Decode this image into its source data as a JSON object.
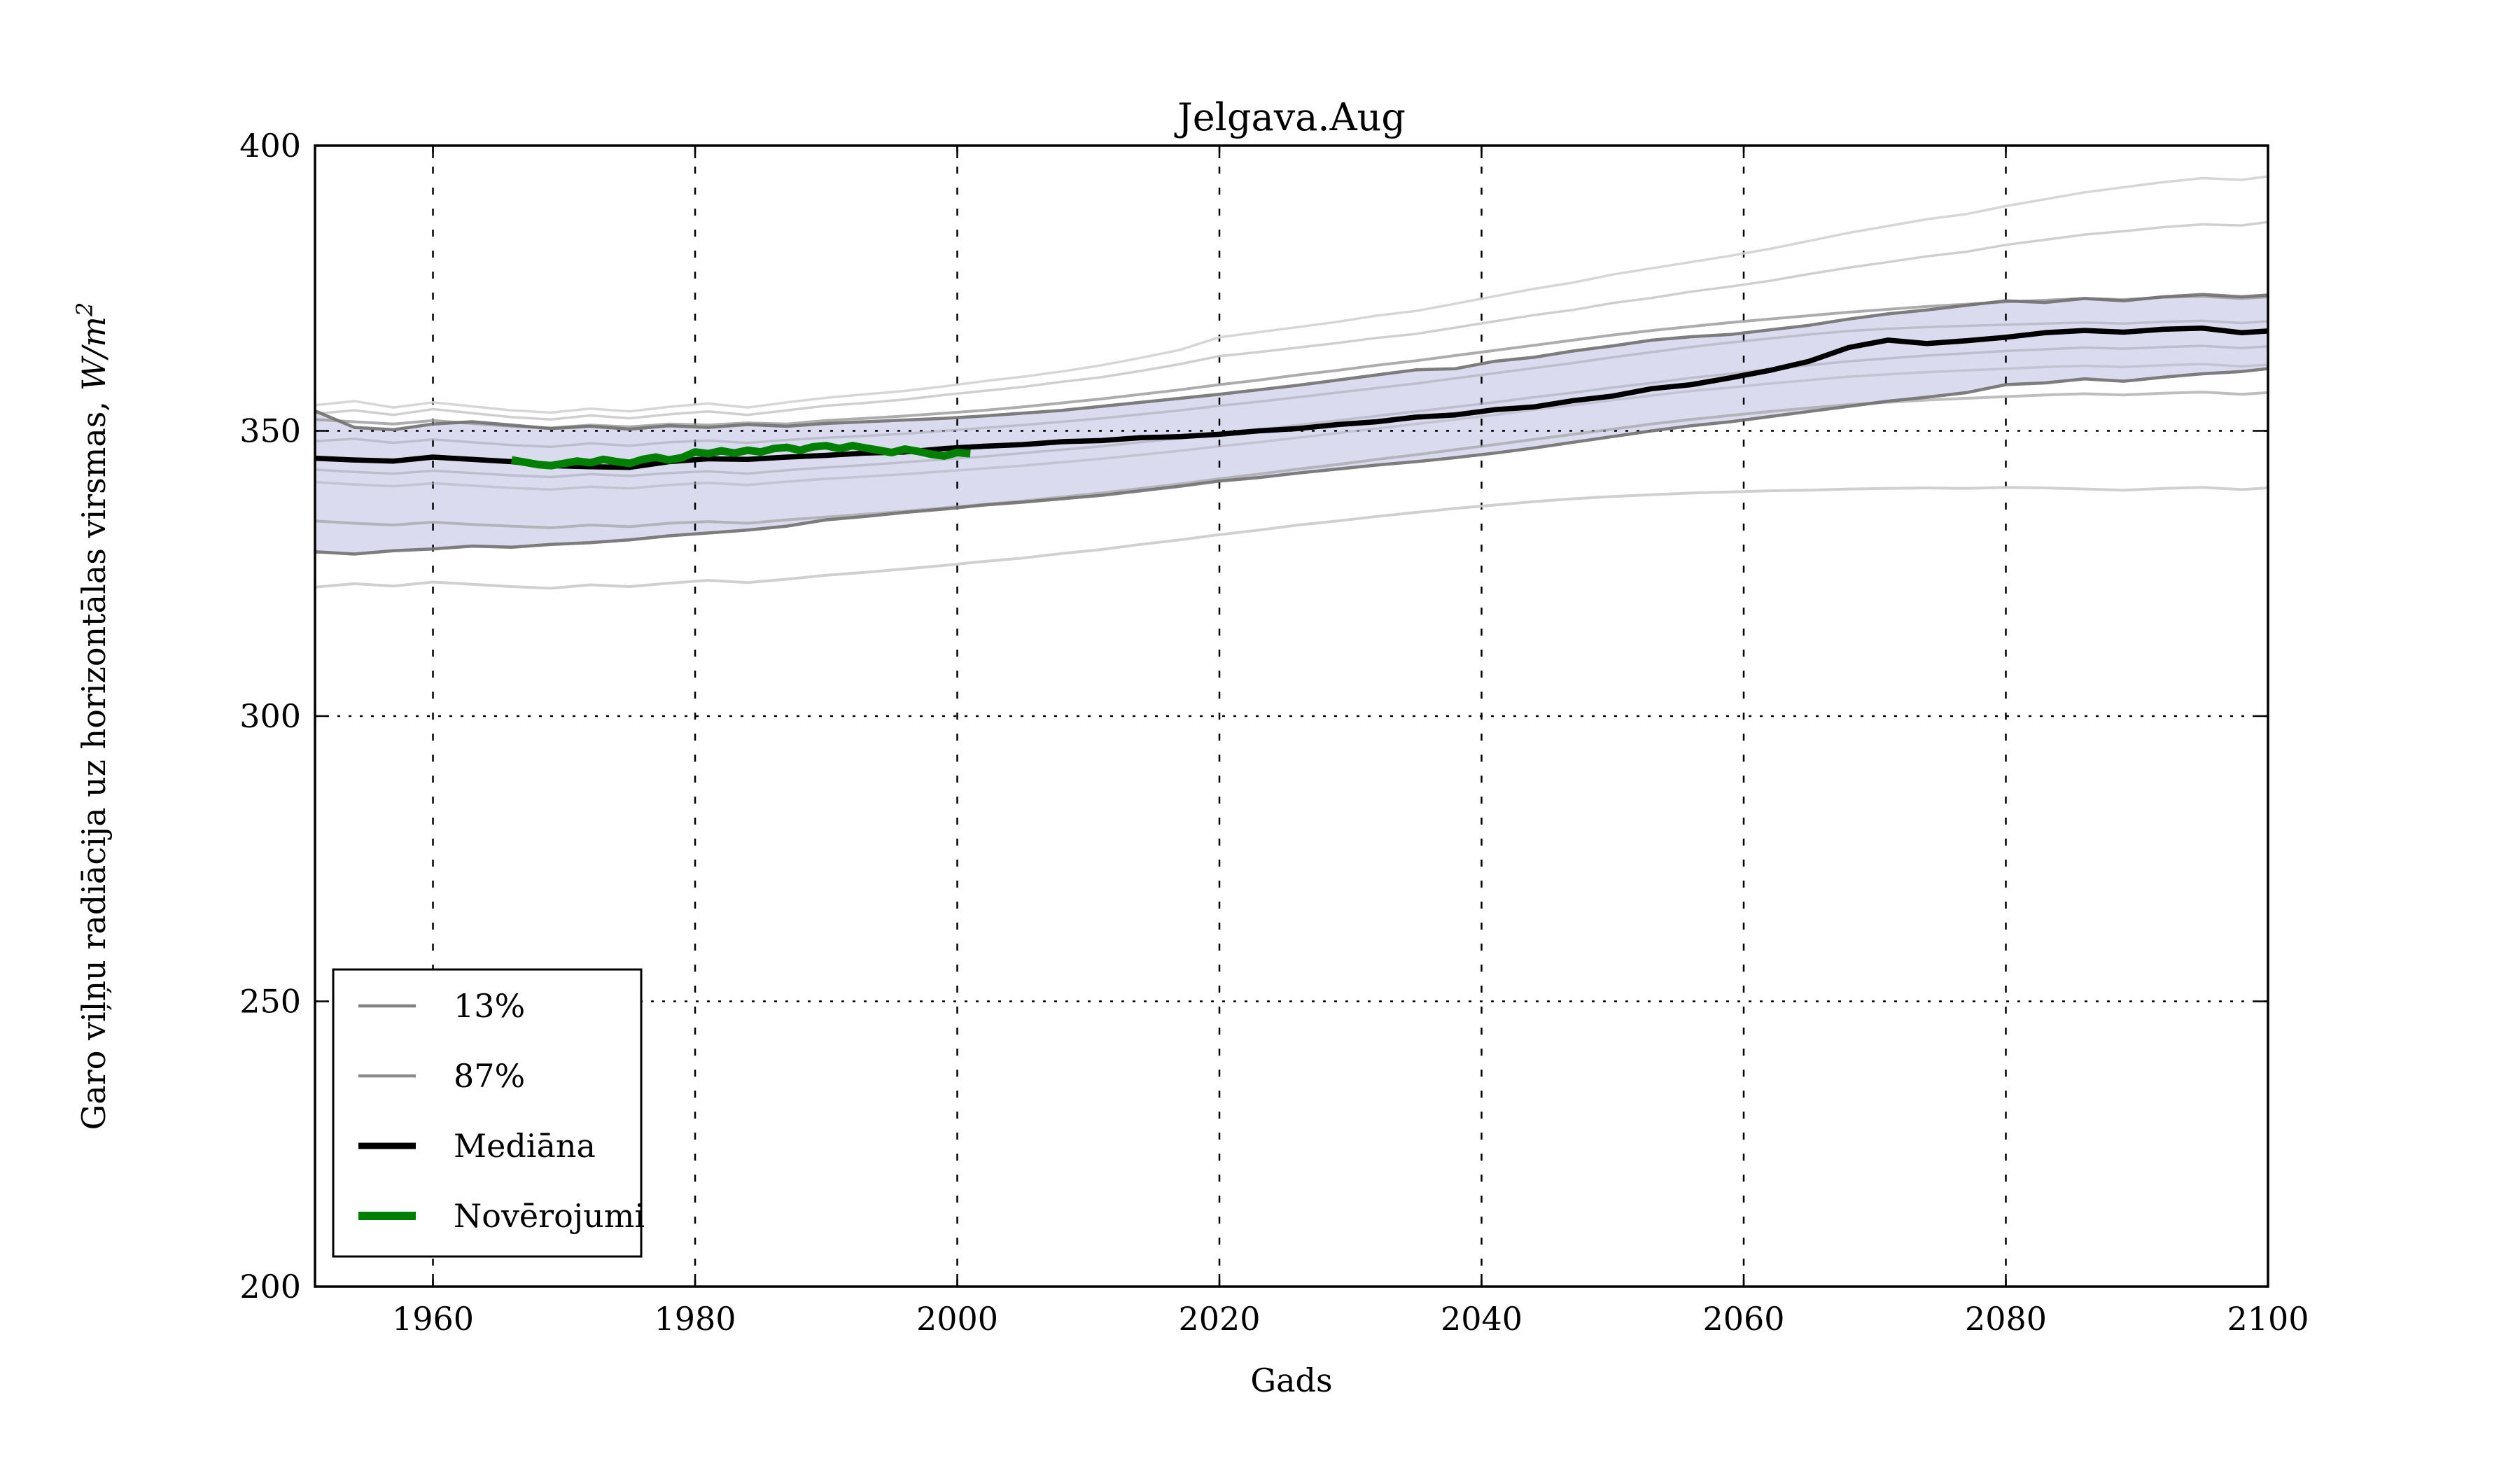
{
  "title": "Jelgava.Aug",
  "xlabel": "Gads",
  "ylabel_prefix": "Garo viļņu radiācija uz horizontālas virsmas, ",
  "ylabel_math": "W/m",
  "ylabel_sup": "2",
  "legend": {
    "items": [
      {
        "label": "13%",
        "color": "#808080",
        "lw": 4.5
      },
      {
        "label": "87%",
        "color": "#8a8a8a",
        "lw": 4.5
      },
      {
        "label": "Mediāna",
        "color": "#000000",
        "lw": 9
      },
      {
        "label": "Novērojumi",
        "color": "#008000",
        "lw": 12
      }
    ]
  },
  "chart_data": {
    "type": "line",
    "title": "Jelgava.Aug",
    "xlabel": "Gads",
    "ylabel": "Garo viļņu radiācija uz horizontālas virsmas, W/m^2",
    "xlim": [
      1951,
      2100
    ],
    "ylim": [
      200,
      400
    ],
    "xticks": [
      1960,
      1980,
      2000,
      2020,
      2040,
      2060,
      2080,
      2100
    ],
    "yticks": [
      200,
      250,
      300,
      350,
      400
    ],
    "grid": true,
    "legend_position": "lower-left",
    "band": {
      "upper": "p87",
      "lower": "p13",
      "fill": "#ccccea",
      "fill_opacity": 0.7
    },
    "x": [
      1951,
      1954,
      1957,
      1960,
      1963,
      1966,
      1969,
      1972,
      1975,
      1978,
      1981,
      1984,
      1987,
      1990,
      1993,
      1996,
      1999,
      2002,
      2005,
      2008,
      2011,
      2014,
      2017,
      2020,
      2023,
      2026,
      2029,
      2032,
      2035,
      2038,
      2041,
      2044,
      2047,
      2050,
      2053,
      2056,
      2059,
      2062,
      2065,
      2068,
      2071,
      2074,
      2077,
      2080,
      2083,
      2086,
      2089,
      2092,
      2095,
      2098,
      2100
    ],
    "series": [
      {
        "name": "ens_top1",
        "label": null,
        "color": "#d2d2d2",
        "width": 3.5,
        "opacity": 0.9,
        "values": [
          354.5,
          355.2,
          354.1,
          355.0,
          354.3,
          353.6,
          353.2,
          353.9,
          353.4,
          354.2,
          354.8,
          354.1,
          355.0,
          355.8,
          356.4,
          357.0,
          357.8,
          358.7,
          359.5,
          360.4,
          361.5,
          362.8,
          364.2,
          366.4,
          367.3,
          368.2,
          369.1,
          370.2,
          371.0,
          372.3,
          373.6,
          374.9,
          376.0,
          377.4,
          378.5,
          379.6,
          380.7,
          381.9,
          383.3,
          384.7,
          385.9,
          387.1,
          388.0,
          389.4,
          390.6,
          391.8,
          392.7,
          393.6,
          394.3,
          394.0,
          394.6
        ]
      },
      {
        "name": "ens_top2",
        "label": null,
        "color": "#cacaca",
        "width": 3.5,
        "opacity": 0.9,
        "values": [
          353.0,
          353.6,
          352.8,
          353.8,
          353.1,
          352.4,
          352.0,
          352.7,
          352.2,
          352.9,
          353.4,
          352.8,
          353.6,
          354.4,
          354.9,
          355.5,
          356.3,
          357.0,
          357.7,
          358.6,
          359.4,
          360.5,
          361.7,
          363.1,
          363.8,
          364.6,
          365.4,
          366.3,
          367.0,
          368.1,
          369.2,
          370.3,
          371.2,
          372.4,
          373.3,
          374.4,
          375.3,
          376.3,
          377.5,
          378.6,
          379.6,
          380.6,
          381.4,
          382.6,
          383.5,
          384.4,
          385.0,
          385.7,
          386.2,
          386.0,
          386.6
        ]
      },
      {
        "name": "ens_top3",
        "label": null,
        "color": "#9e9e9e",
        "width": 4,
        "opacity": 0.85,
        "values": [
          352.0,
          351.6,
          351.2,
          351.8,
          351.3,
          350.8,
          350.5,
          351.0,
          350.7,
          351.2,
          351.0,
          351.4,
          351.2,
          351.8,
          352.2,
          352.6,
          353.1,
          353.6,
          354.2,
          354.9,
          355.6,
          356.4,
          357.2,
          358.1,
          358.9,
          359.8,
          360.6,
          361.5,
          362.3,
          363.2,
          364.1,
          365.0,
          365.9,
          366.8,
          367.6,
          368.3,
          369.0,
          369.6,
          370.2,
          370.8,
          371.3,
          371.8,
          372.2,
          372.6,
          372.9,
          373.2,
          373.0,
          373.4,
          373.6,
          373.2,
          373.5
        ]
      },
      {
        "name": "ens_in1",
        "label": null,
        "color": "#a9a9b8",
        "width": 3.5,
        "opacity": 0.6,
        "values": [
          348.2,
          348.6,
          347.9,
          348.5,
          348.0,
          347.5,
          347.2,
          347.8,
          347.4,
          348.0,
          348.3,
          347.9,
          348.4,
          348.8,
          349.1,
          349.5,
          350.0,
          350.5,
          351.0,
          351.6,
          352.2,
          352.9,
          353.6,
          354.4,
          355.1,
          355.9,
          356.7,
          357.5,
          358.3,
          359.2,
          360.1,
          361.0,
          361.9,
          362.9,
          363.8,
          364.7,
          365.5,
          366.2,
          366.9,
          367.5,
          367.9,
          368.2,
          368.4,
          368.6,
          368.8,
          369.0,
          368.8,
          369.1,
          369.3,
          368.9,
          369.2
        ]
      },
      {
        "name": "ens_in2",
        "label": null,
        "color": "#a9a9b8",
        "width": 3.5,
        "opacity": 0.6,
        "values": [
          343.2,
          342.8,
          342.5,
          343.0,
          342.6,
          342.2,
          341.9,
          342.4,
          342.1,
          342.6,
          342.9,
          342.5,
          343.1,
          343.6,
          344.0,
          344.5,
          345.0,
          345.5,
          346.1,
          346.7,
          347.3,
          348.0,
          348.7,
          349.5,
          350.2,
          351.0,
          351.8,
          352.6,
          353.4,
          354.2,
          355.0,
          355.9,
          356.7,
          357.6,
          358.4,
          359.3,
          360.0,
          360.8,
          361.5,
          362.2,
          362.7,
          363.2,
          363.6,
          364.0,
          364.3,
          364.6,
          364.4,
          364.7,
          364.9,
          364.5,
          364.8
        ]
      },
      {
        "name": "ens_in3",
        "label": null,
        "color": "#b3b3c0",
        "width": 3.5,
        "opacity": 0.6,
        "values": [
          341.0,
          340.6,
          340.3,
          340.8,
          340.4,
          340.0,
          339.7,
          340.2,
          339.9,
          340.5,
          340.9,
          340.5,
          341.1,
          341.6,
          342.0,
          342.4,
          342.9,
          343.4,
          343.9,
          344.5,
          345.1,
          345.8,
          346.5,
          347.3,
          348.0,
          348.8,
          349.6,
          350.4,
          351.2,
          352.0,
          352.8,
          353.7,
          354.5,
          355.4,
          356.2,
          357.0,
          357.6,
          358.3,
          358.9,
          359.5,
          359.9,
          360.3,
          360.6,
          360.9,
          361.2,
          361.4,
          361.2,
          361.5,
          361.7,
          361.3,
          361.6
        ]
      },
      {
        "name": "ens_low1",
        "label": null,
        "color": "#a3a3a3",
        "width": 4,
        "opacity": 0.7,
        "values": [
          334.2,
          333.8,
          333.5,
          334.0,
          333.6,
          333.3,
          333.0,
          333.5,
          333.2,
          333.8,
          334.1,
          333.8,
          334.4,
          334.9,
          335.4,
          335.9,
          336.5,
          337.1,
          337.7,
          338.4,
          339.1,
          339.9,
          340.7,
          341.6,
          342.4,
          343.3,
          344.1,
          345.0,
          345.8,
          346.7,
          347.6,
          348.5,
          349.4,
          350.3,
          351.2,
          352.0,
          352.7,
          353.4,
          354.0,
          354.6,
          355.0,
          355.4,
          355.7,
          356.0,
          356.3,
          356.5,
          356.3,
          356.6,
          356.8,
          356.4,
          356.7
        ]
      },
      {
        "name": "ens_low2",
        "label": null,
        "color": "#cdcdcd",
        "width": 4,
        "opacity": 0.95,
        "values": [
          322.6,
          323.2,
          322.8,
          323.5,
          323.1,
          322.7,
          322.4,
          323.0,
          322.7,
          323.3,
          323.8,
          323.4,
          324.0,
          324.7,
          325.2,
          325.8,
          326.4,
          327.1,
          327.7,
          328.5,
          329.2,
          330.1,
          330.9,
          331.8,
          332.6,
          333.5,
          334.2,
          335.0,
          335.7,
          336.4,
          337.0,
          337.6,
          338.1,
          338.5,
          338.8,
          339.1,
          339.3,
          339.5,
          339.6,
          339.8,
          339.9,
          340.0,
          339.9,
          340.1,
          340.0,
          339.8,
          339.6,
          339.9,
          340.1,
          339.7,
          340.0
        ]
      },
      {
        "name": "p87",
        "label": "87%",
        "color": "#707070",
        "width": 4.5,
        "opacity": 0.9,
        "values": [
          353.5,
          350.6,
          350.2,
          351.2,
          351.6,
          351.0,
          350.4,
          350.8,
          350.3,
          350.9,
          350.6,
          351.1,
          350.8,
          351.3,
          351.6,
          351.9,
          352.2,
          352.6,
          353.1,
          353.6,
          354.3,
          355.0,
          355.7,
          356.4,
          357.2,
          358.0,
          358.9,
          359.8,
          360.7,
          360.9,
          362.2,
          362.9,
          364.0,
          364.9,
          365.9,
          366.5,
          366.9,
          367.7,
          368.5,
          369.6,
          370.5,
          371.2,
          372.0,
          372.8,
          372.5,
          373.2,
          372.8,
          373.5,
          373.9,
          373.5,
          373.8
        ]
      },
      {
        "name": "p13",
        "label": "13%",
        "color": "#707070",
        "width": 4.5,
        "opacity": 0.9,
        "values": [
          328.8,
          328.4,
          329.0,
          329.3,
          329.8,
          329.6,
          330.1,
          330.4,
          330.9,
          331.6,
          332.1,
          332.6,
          333.3,
          334.4,
          335.0,
          335.7,
          336.3,
          337.0,
          337.5,
          338.1,
          338.7,
          339.5,
          340.3,
          341.2,
          341.8,
          342.6,
          343.3,
          344.0,
          344.6,
          345.3,
          346.1,
          347.0,
          348.0,
          349.0,
          350.0,
          350.9,
          351.6,
          352.5,
          353.4,
          354.3,
          355.2,
          355.9,
          356.7,
          358.1,
          358.4,
          359.1,
          358.7,
          359.4,
          360.0,
          360.4,
          360.9
        ]
      },
      {
        "name": "mediana",
        "label": "Mediāna",
        "color": "#000000",
        "width": 7.5,
        "opacity": 1,
        "values": [
          345.2,
          344.9,
          344.7,
          345.4,
          345.0,
          344.6,
          343.9,
          343.7,
          343.6,
          344.6,
          345.1,
          345.0,
          345.4,
          345.7,
          346.1,
          346.3,
          346.9,
          347.3,
          347.6,
          348.1,
          348.3,
          348.8,
          349.0,
          349.4,
          350.0,
          350.4,
          351.1,
          351.6,
          352.4,
          352.8,
          353.7,
          354.2,
          355.3,
          356.1,
          357.4,
          358.1,
          359.3,
          360.6,
          362.2,
          364.6,
          365.9,
          365.3,
          365.8,
          366.4,
          367.2,
          367.6,
          367.3,
          367.8,
          368.0,
          367.2,
          367.5
        ]
      },
      {
        "name": "noverojumi",
        "label": "Novērojumi",
        "color": "#008000",
        "width": 11,
        "opacity": 1,
        "x": [
          1966,
          1967,
          1968,
          1969,
          1970,
          1971,
          1972,
          1973,
          1974,
          1975,
          1976,
          1977,
          1978,
          1979,
          1980,
          1981,
          1982,
          1983,
          1984,
          1985,
          1986,
          1987,
          1988,
          1989,
          1990,
          1991,
          1992,
          1993,
          1994,
          1995,
          1996,
          1997,
          1998,
          1999,
          2000,
          2001
        ],
        "values": [
          344.9,
          344.5,
          344.1,
          343.9,
          344.3,
          344.7,
          344.4,
          345.0,
          344.6,
          344.3,
          345.0,
          345.4,
          344.9,
          345.3,
          346.3,
          346.0,
          346.5,
          346.1,
          346.6,
          346.3,
          346.9,
          347.1,
          346.6,
          347.2,
          347.4,
          346.9,
          347.4,
          347.0,
          346.6,
          346.2,
          346.8,
          346.4,
          345.9,
          345.6,
          346.2,
          346.0
        ]
      }
    ]
  }
}
